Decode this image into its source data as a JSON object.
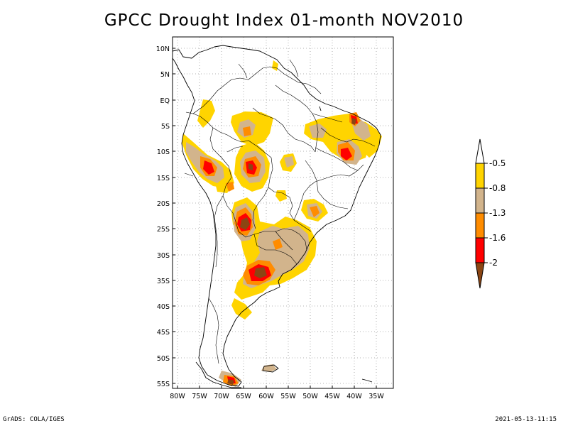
{
  "title": "GPCC Drought Index 01-month NOV2010",
  "footer": {
    "left": "GrADS: COLA/IGES",
    "right": "2021-05-13-11:15"
  },
  "lat_labels": [
    "10N",
    "5N",
    "EQ",
    "5S",
    "10S",
    "15S",
    "20S",
    "25S",
    "30S",
    "35S",
    "40S",
    "45S",
    "50S",
    "55S"
  ],
  "lon_labels": [
    "80W",
    "75W",
    "70W",
    "65W",
    "60W",
    "55W",
    "50W",
    "45W",
    "40W",
    "35W"
  ],
  "legend": {
    "values": [
      "-0.5",
      "-0.8",
      "-1.3",
      "-1.6",
      "-2"
    ],
    "colors": [
      "#ffffff",
      "#ffd400",
      "#d2b48c",
      "#ff8c00",
      "#ff0000",
      "#8b4513"
    ]
  },
  "colors": {
    "mild": "#ffd400",
    "moderate": "#d2b48c",
    "severe": "#ff8c00",
    "extreme": "#ff0000",
    "exceptional": "#8b4513"
  }
}
